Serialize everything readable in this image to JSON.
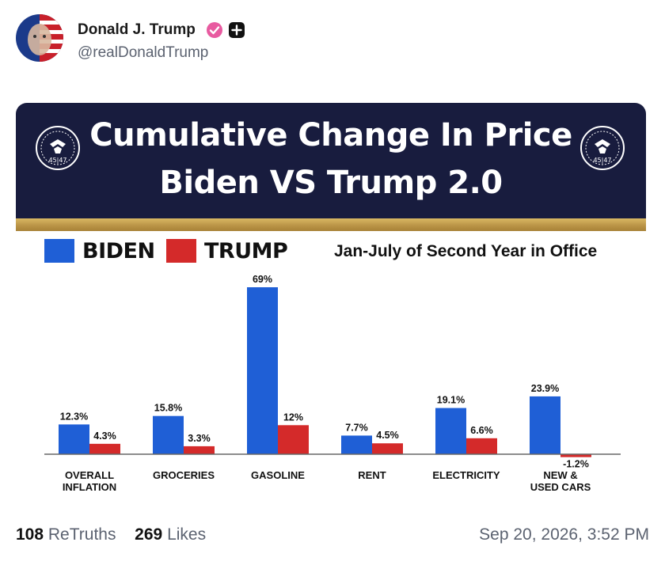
{
  "post": {
    "display_name": "Donald J. Trump",
    "handle": "@realDonaldTrump",
    "retruths_count": "108",
    "retruths_label": "ReTruths",
    "likes_count": "269",
    "likes_label": "Likes",
    "timestamp": "Sep 20, 2026, 3:52 PM"
  },
  "banner": {
    "title_line1": "Cumulative Change In Price",
    "title_line2": "Biden VS Trump 2.0",
    "seal_text": "45|47"
  },
  "colors": {
    "biden": "#1f5fd6",
    "trump": "#d42a2a",
    "navy": "#181c3e",
    "gold": "#c7a353"
  },
  "chart_data": {
    "type": "bar",
    "subtitle": "Jan-July of Second Year in Office",
    "legend_placement": "top",
    "categories": [
      "OVERALL\nINFLATION",
      "GROCERIES",
      "GASOLINE",
      "RENT",
      "ELECTRICITY",
      "NEW &\nUSED CARS"
    ],
    "series": [
      {
        "name": "BIDEN",
        "values": [
          12.3,
          15.8,
          69,
          7.7,
          19.1,
          23.9
        ],
        "labels": [
          "12.3%",
          "15.8%",
          "69%",
          "7.7%",
          "19.1%",
          "23.9%"
        ]
      },
      {
        "name": "TRUMP",
        "values": [
          4.3,
          3.3,
          12,
          4.5,
          6.6,
          -1.2
        ],
        "labels": [
          "4.3%",
          "3.3%",
          "12%",
          "4.5%",
          "6.6%",
          "-1.2%"
        ]
      }
    ],
    "ylim": [
      -5,
      70
    ],
    "grid": false
  }
}
